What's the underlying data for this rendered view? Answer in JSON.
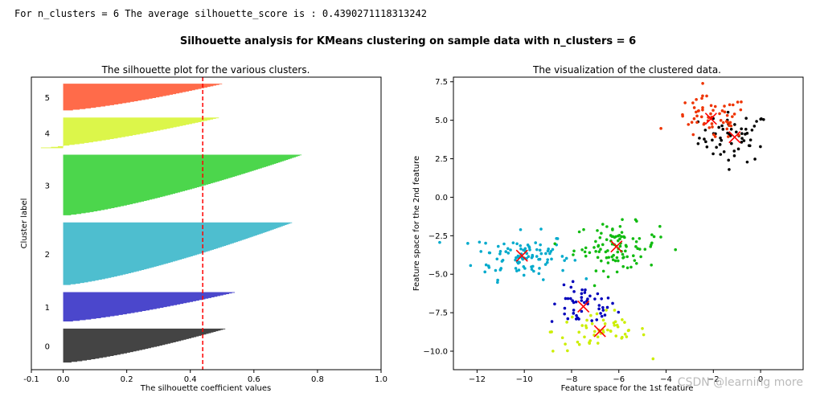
{
  "console_output": "For n_clusters = 6 The average silhouette_score is : 0.4390271118313242",
  "suptitle": "Silhouette analysis for KMeans clustering on sample data with n_clusters = 6",
  "watermark": "CSDN @learning more",
  "chart_data": [
    {
      "type": "bar",
      "title": "The silhouette plot for the various clusters.",
      "xlabel": "The silhouette coefficient values",
      "ylabel": "Cluster label",
      "xlim": [
        -0.1,
        1.0
      ],
      "xticks": [
        "-0.1",
        "0.0",
        "0.2",
        "0.4",
        "0.6",
        "0.8",
        "1.0"
      ],
      "average_silhouette_score": 0.4390271118313242,
      "avg_line_color": "#ff0000",
      "clusters": [
        {
          "label": "0",
          "size": 53,
          "min": 0.0,
          "max": 0.51,
          "color": "#444444"
        },
        {
          "label": "1",
          "size": 46,
          "min": 0.0,
          "max": 0.54,
          "color": "#4b47cc"
        },
        {
          "label": "2",
          "size": 97,
          "min": 0.0,
          "max": 0.72,
          "color": "#4ebecf"
        },
        {
          "label": "3",
          "size": 94,
          "min": 0.0,
          "max": 0.75,
          "color": "#4cd64c"
        },
        {
          "label": "4",
          "size": 47,
          "min": -0.07,
          "max": 0.49,
          "color": "#dcf64a"
        },
        {
          "label": "5",
          "size": 42,
          "min": 0.0,
          "max": 0.5,
          "color": "#ff6b4a"
        }
      ]
    },
    {
      "type": "scatter",
      "title": "The visualization of the clustered data.",
      "xlabel": "Feature space for the 1st feature",
      "ylabel": "Feature space for the 2nd feature",
      "xlim": [
        -13,
        1.8
      ],
      "ylim": [
        -11.2,
        7.8
      ],
      "xticks": [
        "−12",
        "−10",
        "−8",
        "−6",
        "−4",
        "−2",
        "0"
      ],
      "yticks": [
        "−10.0",
        "−7.5",
        "−5.0",
        "−2.5",
        "0.0",
        "2.5",
        "5.0",
        "7.5"
      ],
      "centers_color": "#ff0000",
      "clusters": [
        {
          "label": "0",
          "color": "#000000",
          "center": [
            -1.1,
            3.9
          ],
          "spread": [
            0.75,
            0.8
          ],
          "n": 60
        },
        {
          "label": "1",
          "color": "#0000bb",
          "center": [
            -7.5,
            -7.1
          ],
          "spread": [
            0.7,
            0.65
          ],
          "n": 50
        },
        {
          "label": "2",
          "color": "#00aacc",
          "center": [
            -10.1,
            -3.8
          ],
          "spread": [
            1.0,
            0.75
          ],
          "n": 100
        },
        {
          "label": "3",
          "color": "#11bb11",
          "center": [
            -6.1,
            -3.2
          ],
          "spread": [
            0.9,
            0.75
          ],
          "n": 100
        },
        {
          "label": "4",
          "color": "#ccee00",
          "center": [
            -6.8,
            -8.7
          ],
          "spread": [
            1.0,
            0.7
          ],
          "n": 55
        },
        {
          "label": "5",
          "color": "#ee3300",
          "center": [
            -2.1,
            5.1
          ],
          "spread": [
            0.8,
            0.7
          ],
          "n": 60
        }
      ]
    }
  ]
}
